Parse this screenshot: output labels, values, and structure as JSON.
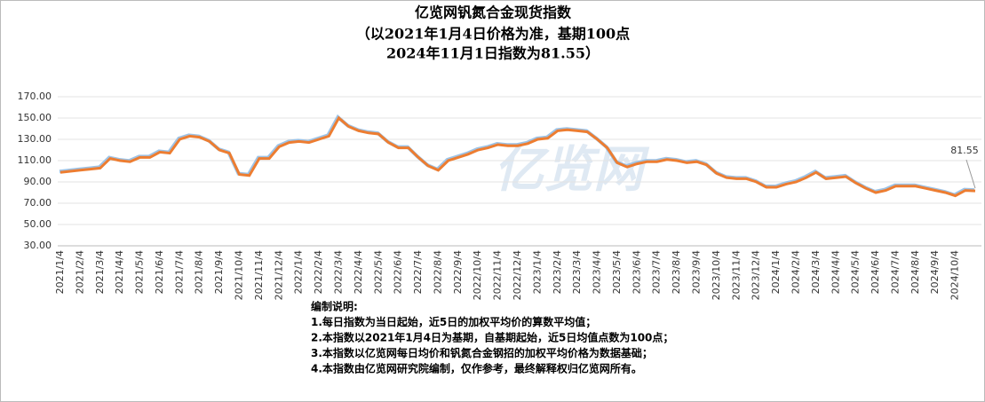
{
  "chart_data": {
    "type": "line",
    "title": [
      "亿览网钒氮合金现货指数",
      "（以2021年1月4日价格为准，基期100点",
      "2024年11月1日指数为81.55）"
    ],
    "watermark": "亿览网",
    "categories": [
      "2021/1/4",
      null,
      "2021/2/4",
      null,
      "2021/3/4",
      null,
      "2021/4/4",
      null,
      "2021/5/4",
      null,
      "2021/6/4",
      null,
      "2021/7/4",
      null,
      "2021/8/4",
      null,
      "2021/9/4",
      null,
      "2021/10/4",
      null,
      "2021/11/4",
      null,
      "2021/12/4",
      null,
      "2022/1/4",
      null,
      "2022/2/4",
      null,
      "2022/3/4",
      null,
      "2022/4/4",
      null,
      "2022/5/4",
      null,
      "2022/6/4",
      null,
      "2022/7/4",
      null,
      "2022/8/4",
      null,
      "2022/9/4",
      null,
      "2022/10/4",
      null,
      "2022/11/4",
      null,
      "2022/12/4",
      null,
      "2023/1/4",
      null,
      "2023/2/4",
      null,
      "2023/3/4",
      null,
      "2023/4/4",
      null,
      "2023/5/4",
      null,
      "2023/6/4",
      null,
      "2023/7/4",
      null,
      "2023/8/4",
      null,
      "2023/9/4",
      null,
      "2023/10/4",
      null,
      "2023/11/4",
      null,
      "2023/12/4",
      null,
      "2024/1/4",
      null,
      "2024/2/4",
      null,
      "2024/3/4",
      null,
      "2024/4/4",
      null,
      "2024/5/4",
      null,
      "2024/6/4",
      null,
      "2024/7/4",
      null,
      "2024/8/4",
      null,
      "2024/9/4",
      null,
      "2024/10/4",
      null,
      null
    ],
    "series": [
      {
        "name": "亿览网钒氮合金现货指数",
        "color": "#ed7d31",
        "values": [
          99,
          100,
          101,
          102,
          103,
          112,
          110,
          109,
          113,
          113,
          118,
          117,
          130,
          133,
          132,
          128,
          120,
          117,
          97,
          96,
          112,
          112,
          123,
          127,
          128,
          127,
          130,
          133,
          150,
          142,
          138,
          136,
          135,
          127,
          122,
          122,
          113,
          105,
          101,
          110,
          113,
          116,
          120,
          122,
          125,
          124,
          124,
          126,
          130,
          131,
          138,
          139,
          138,
          137,
          130,
          122,
          108,
          104,
          107,
          109,
          109,
          111,
          110,
          108,
          109,
          106,
          98,
          94,
          93,
          93,
          90,
          85,
          85,
          88,
          90,
          94,
          99,
          93,
          94,
          95,
          89,
          84,
          80,
          82,
          86,
          86,
          86,
          84,
          82,
          80,
          77,
          82,
          81.55
        ],
        "value_labels": {
          "92": "81.55"
        }
      }
    ],
    "ylim": [
      30,
      170
    ],
    "yticks": [
      {
        "value": 30,
        "label": "30.00"
      },
      {
        "value": 50,
        "label": "50.00"
      },
      {
        "value": 70,
        "label": "70.00"
      },
      {
        "value": 90,
        "label": "90.00"
      },
      {
        "value": 110,
        "label": "110.00"
      },
      {
        "value": 130,
        "label": "130.00"
      },
      {
        "value": 150,
        "label": "150.00"
      },
      {
        "value": 170,
        "label": "170.00"
      }
    ],
    "grid": true,
    "notes": [
      "编制说明:",
      "1.每日指数为当日起始，近5日的加权平均价的算数平均值；",
      "2.本指数以2021年1月4日为基期，自基期起始，近5日均值点数为100点；",
      "3.本指数以亿览网每日均价和钒氮合金钢招的加权平均价格为数据基础；",
      "4.本指数由亿览网研究院编制，仅作参考，最终解释权归亿览网所有。"
    ]
  }
}
